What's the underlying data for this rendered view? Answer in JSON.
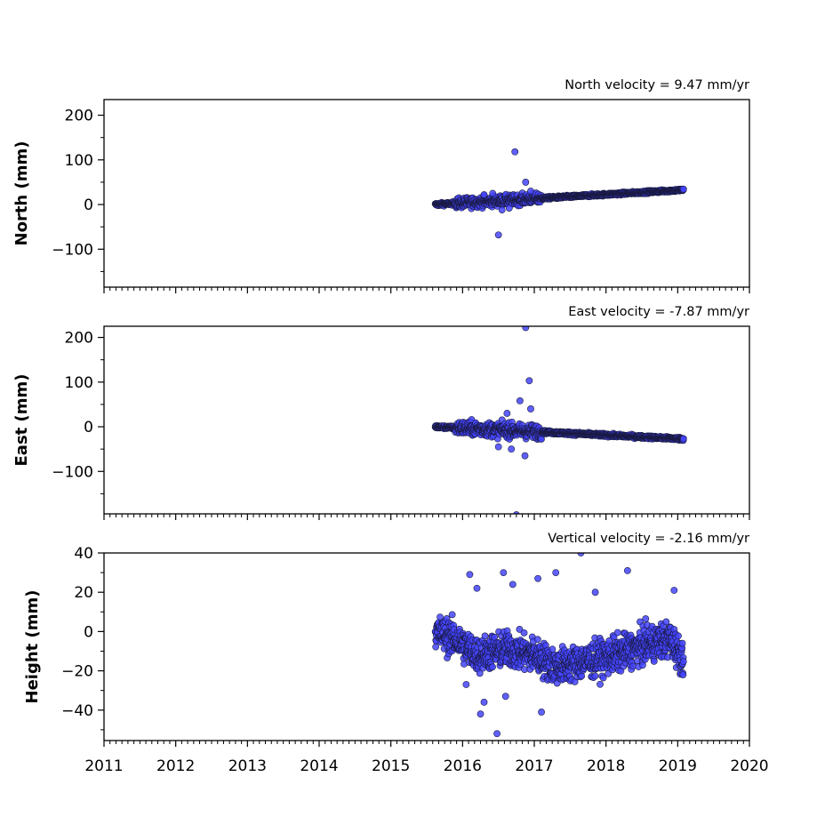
{
  "chart_data": [
    {
      "type": "scatter",
      "title": "North velocity = 9.47 mm/yr",
      "xlabel": "",
      "ylabel": "North (mm)",
      "xlim": [
        2011,
        2020
      ],
      "ylim": [
        -185,
        235
      ],
      "yticks": [
        -100,
        0,
        100,
        200
      ],
      "yticklabels": [
        "−100",
        "0",
        "100",
        "200"
      ],
      "grid": false,
      "marker_color": "#4444ff",
      "trend": {
        "start_year": 2015.62,
        "end_year": 2019.08,
        "start_value": 0,
        "slope_per_year": 9.47
      },
      "spread": [
        {
          "from": 2015.62,
          "to": 2015.9,
          "amplitude": 3
        },
        {
          "from": 2015.9,
          "to": 2017.1,
          "amplitude": 10
        },
        {
          "from": 2017.1,
          "to": 2019.08,
          "amplitude": 2.5
        }
      ],
      "outliers": [
        {
          "x": 2016.73,
          "y": 118
        },
        {
          "x": 2016.5,
          "y": -68
        },
        {
          "x": 2016.88,
          "y": 50
        },
        {
          "x": 2016.55,
          "y": -12
        },
        {
          "x": 2016.42,
          "y": 25
        },
        {
          "x": 2016.95,
          "y": 30
        },
        {
          "x": 2016.65,
          "y": -8
        },
        {
          "x": 2016.3,
          "y": 22
        }
      ]
    },
    {
      "type": "scatter",
      "title": "East velocity = -7.87 mm/yr",
      "xlabel": "",
      "ylabel": "East (mm)",
      "xlim": [
        2011,
        2020
      ],
      "ylim": [
        -195,
        225
      ],
      "yticks": [
        -100,
        0,
        100,
        200
      ],
      "yticklabels": [
        "−100",
        "0",
        "100",
        "200"
      ],
      "grid": false,
      "marker_color": "#4444ff",
      "trend": {
        "start_year": 2015.62,
        "end_year": 2019.08,
        "start_value": 0,
        "slope_per_year": -7.87
      },
      "spread": [
        {
          "from": 2015.62,
          "to": 2015.9,
          "amplitude": 3
        },
        {
          "from": 2015.9,
          "to": 2017.1,
          "amplitude": 14
        },
        {
          "from": 2017.1,
          "to": 2019.08,
          "amplitude": 3
        }
      ],
      "outliers": [
        {
          "x": 2016.88,
          "y": 222
        },
        {
          "x": 2016.93,
          "y": 103
        },
        {
          "x": 2016.8,
          "y": 58
        },
        {
          "x": 2016.75,
          "y": -197
        },
        {
          "x": 2016.87,
          "y": -65
        },
        {
          "x": 2016.95,
          "y": 40
        },
        {
          "x": 2016.68,
          "y": -50
        },
        {
          "x": 2016.5,
          "y": -45
        },
        {
          "x": 2016.62,
          "y": 30
        }
      ]
    },
    {
      "type": "scatter",
      "title": "Vertical velocity = -2.16 mm/yr",
      "xlabel": "",
      "ylabel": "Height (mm)",
      "xlim": [
        2011,
        2020
      ],
      "ylim": [
        -55.5,
        40
      ],
      "yticks": [
        -40,
        -20,
        0,
        20,
        40
      ],
      "yticklabels": [
        "−40",
        "−20",
        "0",
        "20",
        "40"
      ],
      "xticks": [
        2011,
        2012,
        2013,
        2014,
        2015,
        2016,
        2017,
        2018,
        2019,
        2020
      ],
      "xticklabels": [
        "2011",
        "2012",
        "2013",
        "2014",
        "2015",
        "2016",
        "2017",
        "2018",
        "2019",
        "2020"
      ],
      "grid": false,
      "marker_color": "#4444ff",
      "trend": {
        "start_year": 2015.62,
        "end_year": 2019.08,
        "start_value": 0,
        "slope_per_year": 0
      },
      "baseline": [
        {
          "x": 2015.62,
          "y": 0
        },
        {
          "x": 2015.9,
          "y": -4
        },
        {
          "x": 2016.2,
          "y": -12
        },
        {
          "x": 2016.6,
          "y": -9
        },
        {
          "x": 2017.0,
          "y": -12
        },
        {
          "x": 2017.3,
          "y": -18
        },
        {
          "x": 2017.6,
          "y": -16
        },
        {
          "x": 2018.0,
          "y": -13
        },
        {
          "x": 2018.3,
          "y": -10
        },
        {
          "x": 2018.6,
          "y": -6
        },
        {
          "x": 2018.9,
          "y": -4
        },
        {
          "x": 2019.08,
          "y": -14
        }
      ],
      "spread": [
        {
          "from": 2015.62,
          "to": 2019.08,
          "amplitude": 8
        }
      ],
      "outliers": [
        {
          "x": 2016.57,
          "y": 30
        },
        {
          "x": 2016.1,
          "y": 29
        },
        {
          "x": 2017.05,
          "y": 27
        },
        {
          "x": 2017.3,
          "y": 30
        },
        {
          "x": 2017.65,
          "y": 40
        },
        {
          "x": 2018.3,
          "y": 31
        },
        {
          "x": 2017.85,
          "y": 20
        },
        {
          "x": 2018.95,
          "y": 21
        },
        {
          "x": 2016.48,
          "y": -52
        },
        {
          "x": 2016.25,
          "y": -42
        },
        {
          "x": 2017.1,
          "y": -41
        },
        {
          "x": 2016.3,
          "y": -36
        },
        {
          "x": 2016.6,
          "y": -33
        },
        {
          "x": 2016.05,
          "y": -27
        },
        {
          "x": 2016.7,
          "y": 24
        },
        {
          "x": 2016.2,
          "y": 22
        }
      ]
    }
  ]
}
